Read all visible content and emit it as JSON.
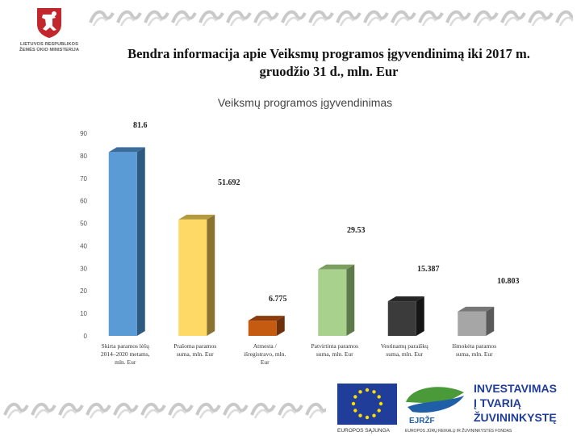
{
  "header": {
    "ministry_name_line1": "LIETUVOS RESPUBLIKOS",
    "ministry_name_line2": "ŽEMĖS ŪKIO MINISTERIJA",
    "title_line1": "Bendra informacija apie Veiksmų programos įgyvendinimą iki 2017 m.",
    "title_line2": "gruodžio 31 d., mln. Eur"
  },
  "chart_data": {
    "type": "bar",
    "title": "Veiksmų programos įgyvendinimas",
    "ylim": [
      0,
      90
    ],
    "yticks": [
      0,
      10,
      20,
      30,
      40,
      50,
      60,
      70,
      80,
      90
    ],
    "categories": [
      [
        "Skirta paramos lėšų",
        "2014–2020 metams,",
        "mln. Eur"
      ],
      [
        "Prašoma paramos",
        "suma, mln. Eur"
      ],
      [
        "Atmesta /",
        "išregistravo, mln.",
        "Eur"
      ],
      [
        "Patvirtinta paramos",
        "suma, mln. Eur"
      ],
      [
        "Vestinamų paraiškų",
        "suma, mln. Eur"
      ],
      [
        "Išmokėta paramos",
        "suma, mln. Eur"
      ]
    ],
    "values": [
      81.6,
      51.692,
      6.775,
      29.53,
      15.387,
      10.803
    ],
    "labels": [
      "81.6",
      "51.692",
      "6.775",
      "29.53",
      "15.387",
      "10.803"
    ],
    "colors": [
      "#5b9bd5",
      "#ffd966",
      "#c55a11",
      "#a9d18e",
      "#3b3b3b",
      "#a6a6a6"
    ],
    "side_colors": [
      "#2e5a80",
      "#8a7330",
      "#6e300a",
      "#5e7a4a",
      "#151515",
      "#5a5a5a"
    ],
    "top_colors": [
      "#3b6d9c",
      "#b49a3e",
      "#8a3c0d",
      "#7a9e60",
      "#262626",
      "#777777"
    ]
  },
  "footer": {
    "eu_label": "EUROPOS SĄJUNGA",
    "fund_logo_text": "EJRŽF",
    "fund_label": "EUROPOS JŪRŲ REIKALŲ IR ŽUVININKYSTĖS FONDAS",
    "slogan_line1": "INVESTAVIMAS",
    "slogan_line2": "Į TVARIĄ",
    "slogan_line3": "ŽUVININKYSTĘ"
  }
}
